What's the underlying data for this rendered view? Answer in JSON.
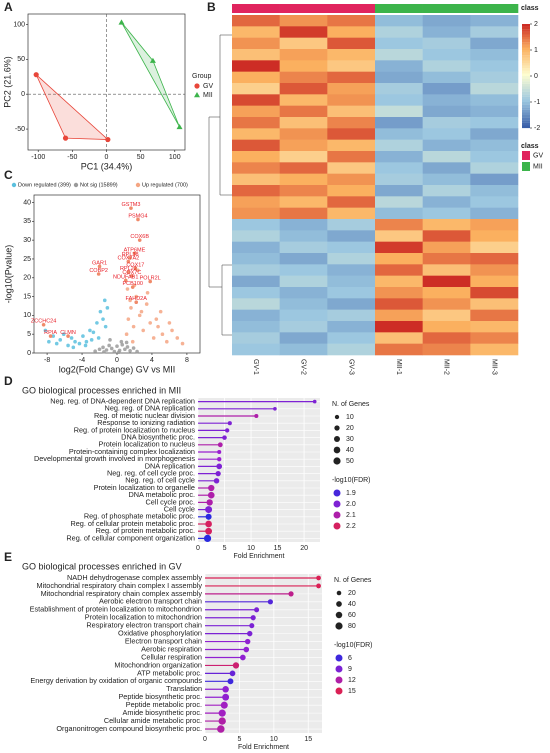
{
  "chart_data": [
    {
      "type": "scatter",
      "label": "A",
      "xlabel": "PC1 (34.4%)",
      "ylabel": "PC2 (21.6%)",
      "legend_title": "Group",
      "xlim": [
        -115,
        115
      ],
      "ylim": [
        -80,
        115
      ],
      "xticks": [
        -100,
        -50,
        0,
        50,
        100
      ],
      "yticks": [
        -50,
        0,
        50,
        100
      ],
      "hline": 0,
      "vline": 0,
      "series": [
        {
          "name": "GV",
          "color": "#e8463a",
          "marker": "circle",
          "x": [
            -103,
            -60,
            2
          ],
          "values": [
            28,
            -63,
            -65
          ]
        },
        {
          "name": "MII",
          "color": "#3cb44b",
          "marker": "triangle",
          "x": [
            22,
            68,
            107
          ],
          "values": [
            103,
            48,
            -47
          ]
        }
      ]
    },
    {
      "type": "heatmap",
      "label": "B",
      "columns": [
        "GV-1",
        "GV-2",
        "GV-3",
        "MII-1",
        "MII-2",
        "MII-3"
      ],
      "column_class": [
        "GV",
        "GV",
        "GV",
        "MII",
        "MII",
        "MII"
      ],
      "class_title": "class",
      "classes": [
        {
          "name": "GV",
          "color": "#e0245e"
        },
        {
          "name": "MII",
          "color": "#3cb44b"
        }
      ],
      "zlim": [
        -2,
        2
      ],
      "colorbar_ticks": [
        -2,
        -1,
        0,
        1,
        2
      ],
      "cmap": [
        "#3a5fa8",
        "#9cc7e0",
        "#fdfdd0",
        "#fbb05f",
        "#c81e1e"
      ],
      "rows": [
        [
          1.5,
          1.2,
          1.4,
          -1.1,
          -1.3,
          -1.2
        ],
        [
          0.9,
          1.8,
          1.0,
          -0.8,
          -1.2,
          -0.9
        ],
        [
          1.2,
          0.7,
          1.6,
          -1.0,
          -0.9,
          -1.3
        ],
        [
          0.8,
          1.1,
          0.9,
          -0.7,
          -1.0,
          -1.1
        ],
        [
          1.9,
          1.0,
          0.7,
          -1.2,
          -0.8,
          -1.0
        ],
        [
          1.0,
          1.3,
          1.5,
          -1.3,
          -1.1,
          -0.9
        ],
        [
          0.6,
          1.6,
          1.1,
          -0.9,
          -1.4,
          -0.7
        ],
        [
          1.7,
          0.9,
          1.2,
          -1.0,
          -1.2,
          -1.1
        ],
        [
          1.1,
          1.4,
          0.8,
          -0.6,
          -1.3,
          -1.2
        ],
        [
          1.4,
          0.8,
          1.3,
          -1.4,
          -0.9,
          -1.0
        ],
        [
          0.9,
          1.2,
          1.6,
          -1.1,
          -1.0,
          -1.3
        ],
        [
          1.6,
          1.1,
          0.9,
          -0.8,
          -1.2,
          -1.1
        ],
        [
          1.0,
          0.6,
          1.4,
          -1.2,
          -0.7,
          -1.0
        ],
        [
          1.3,
          1.5,
          0.7,
          -1.0,
          -1.3,
          -0.8
        ],
        [
          0.8,
          1.0,
          1.2,
          -0.9,
          -1.1,
          -1.4
        ],
        [
          1.5,
          1.3,
          1.0,
          -1.3,
          -0.8,
          -1.1
        ],
        [
          1.1,
          0.9,
          1.5,
          -0.7,
          -1.2,
          -1.0
        ],
        [
          1.2,
          1.4,
          0.9,
          -1.1,
          -1.0,
          -1.2
        ],
        [
          -1.0,
          -1.2,
          -0.9,
          1.3,
          0.9,
          1.1
        ],
        [
          -0.8,
          -1.1,
          -1.3,
          0.7,
          1.6,
          1.0
        ],
        [
          -1.2,
          -0.9,
          -1.0,
          1.8,
          1.1,
          0.6
        ],
        [
          -1.1,
          -1.3,
          -0.8,
          1.0,
          1.4,
          1.5
        ],
        [
          -0.9,
          -1.0,
          -1.2,
          1.5,
          0.8,
          1.2
        ],
        [
          -1.3,
          -0.8,
          -1.1,
          0.9,
          1.9,
          1.0
        ],
        [
          -1.0,
          -1.2,
          -1.0,
          1.2,
          1.0,
          1.7
        ],
        [
          -0.7,
          -1.1,
          -1.3,
          1.6,
          1.2,
          0.8
        ],
        [
          -1.2,
          -1.0,
          -0.9,
          1.1,
          0.7,
          1.4
        ],
        [
          -1.1,
          -0.9,
          -1.2,
          1.9,
          1.0,
          0.9
        ],
        [
          -0.9,
          -1.3,
          -1.0,
          0.8,
          1.5,
          1.3
        ],
        [
          -1.0,
          -1.1,
          -0.8,
          1.4,
          1.3,
          0.9
        ]
      ]
    },
    {
      "type": "volcano",
      "label": "C",
      "xlabel": "log2(Fold Change) GV vs MII",
      "ylabel": "-log10(Pvalue)",
      "xlim": [
        -9.5,
        9.5
      ],
      "ylim": [
        0,
        42
      ],
      "xticks": [
        -8,
        -4,
        0,
        4,
        8
      ],
      "yticks": [
        0,
        5,
        10,
        15,
        20,
        25,
        30,
        35,
        40
      ],
      "series": [
        {
          "name": "Down regulated (399)",
          "color": "#5bc0de",
          "x": [
            -8.2,
            -7.8,
            -7.3,
            -6.9,
            -6.5,
            -6.1,
            -5.6,
            -5.2,
            -4.8,
            -4.3,
            -3.9,
            -3.5,
            -3.1,
            -2.7,
            -2.3,
            -1.9,
            -1.6,
            -1.3,
            -1.1,
            -2.9,
            -3.6,
            -5.0,
            -2.1,
            -1.4
          ],
          "values": [
            6,
            3,
            4.5,
            2.5,
            3.5,
            5,
            2,
            4,
            3,
            2.5,
            4.5,
            3,
            6,
            5.5,
            8,
            11,
            9,
            7,
            12,
            3.5,
            2,
            1.5,
            4,
            14
          ]
        },
        {
          "name": "Not sig (15899)",
          "color": "#9a9a9a",
          "x": [
            -2.5,
            -2,
            -1.6,
            -1.2,
            -0.9,
            -0.6,
            -0.3,
            0,
            0.3,
            0.6,
            0.9,
            1.2,
            1.5,
            1.9,
            2.3,
            -0.8,
            0.5,
            -1.5,
            1.1,
            0.2
          ],
          "values": [
            0.5,
            1,
            1.5,
            0.8,
            2,
            1.2,
            0.4,
            1.8,
            0.7,
            2.2,
            1,
            1.6,
            0.6,
            1.3,
            0.4,
            3.5,
            3,
            0.3,
            2.8,
            0.2
          ]
        },
        {
          "name": "Up regulated (700)",
          "color": "#f4a582",
          "x": [
            1.1,
            1.3,
            1.6,
            1.9,
            2.2,
            2.6,
            3.0,
            3.4,
            3.8,
            4.2,
            4.7,
            5.2,
            5.7,
            6.3,
            6.9,
            7.5,
            1.2,
            1.5,
            2.0,
            2.8,
            3.5,
            4.5,
            1.8,
            2.4,
            5.0,
            6.0
          ],
          "values": [
            5,
            9,
            12,
            7,
            15,
            10,
            6,
            13,
            8,
            4,
            7,
            5,
            3,
            6,
            4,
            2.5,
            17,
            14,
            18,
            11,
            16,
            9,
            3,
            22,
            11,
            8
          ]
        }
      ],
      "genes": {
        "color": "#e8202a",
        "names": [
          "GSTM3",
          "PSMG4",
          "COX6B",
          "ATP6ME",
          "RPL38",
          "COX7A2",
          "COX17",
          "RPL22",
          "COX7C",
          "NDUFAB1",
          "POLR2L",
          "PCB100",
          "FAHD2A",
          "GAR1",
          "COBP2",
          "ZCCHC24",
          "RPIA",
          "CLMN"
        ],
        "x": [
          1.6,
          2.4,
          2.6,
          2.0,
          1.5,
          1.3,
          2.1,
          1.3,
          1.7,
          1.0,
          3.8,
          1.8,
          2.2,
          -2.0,
          -2.1,
          -8.4,
          -7.6,
          -5.6
        ],
        "values": [
          38.5,
          35.5,
          30,
          26.5,
          25.3,
          24.3,
          22.5,
          21.5,
          20.5,
          19.3,
          19,
          17.5,
          13.5,
          23,
          21,
          7.5,
          4.5,
          4.5
        ]
      }
    },
    {
      "type": "lollipop",
      "label": "D",
      "title": "GO biological processes enriched in MII",
      "xlabel": "Fold Enrichment",
      "xlim": [
        0,
        23
      ],
      "xticks": [
        0,
        5,
        10,
        15,
        20
      ],
      "size_title": "N. of Genes",
      "size_ticks": [
        10,
        20,
        30,
        40,
        50
      ],
      "color_title": "-log10(FDR)",
      "color_lim": [
        1.85,
        2.25
      ],
      "color_ticks": [
        1.9,
        {
          "value": 2,
          "label": "2.0"
        },
        2.1,
        2.2
      ],
      "cmap": [
        "#2a2ae0",
        "#9a1fd0",
        "#e8203a"
      ],
      "categories": [
        "Neg. reg. of DNA-dependent DNA replication",
        "Neg. reg. of DNA replication",
        "Reg. of meiotic nuclear division",
        "Response to ionizing radiation",
        "Reg. of protein localization to nucleus",
        "DNA biosynthetic proc.",
        "Protein localization to nucleus",
        "Protein-containing complex localization",
        "Developmental growth involved in morphogenesis",
        "DNA replication",
        "Neg. reg. of cell cycle proc.",
        "Neg. reg. of cell cycle",
        "Protein localization to organelle",
        "DNA metabolic proc.",
        "Cell cycle proc.",
        "Cell cycle",
        "Reg. of phosphate metabolic proc.",
        "Reg. of cellular protein metabolic proc.",
        "Reg. of protein metabolic proc.",
        "Reg. of cellular component organization"
      ],
      "values": [
        22,
        14.5,
        11,
        6,
        5.5,
        5,
        4.2,
        4,
        4,
        4,
        3.8,
        3.5,
        2.5,
        2.5,
        2.2,
        2,
        2,
        2,
        2,
        1.8
      ],
      "sizes": [
        5,
        5,
        8,
        8,
        10,
        12,
        15,
        8,
        10,
        25,
        20,
        22,
        35,
        40,
        35,
        45,
        30,
        40,
        42,
        50
      ],
      "fdr": [
        2.0,
        2.0,
        2.1,
        2.0,
        2.0,
        2.0,
        2.1,
        2.05,
        2.05,
        2.0,
        2.0,
        2.0,
        2.1,
        2.1,
        2.1,
        2.0,
        1.85,
        2.2,
        2.2,
        1.85
      ]
    },
    {
      "type": "lollipop",
      "label": "E",
      "title": "GO biological processes enriched in GV",
      "xlabel": "Fold Enrichment",
      "xlim": [
        0,
        17
      ],
      "xticks": [
        0,
        5,
        10,
        15
      ],
      "size_title": "N. of Genes",
      "size_ticks": [
        20,
        40,
        60,
        80
      ],
      "color_title": "-log10(FDR)",
      "color_lim": [
        5,
        16
      ],
      "color_ticks": [
        6,
        9,
        12,
        15
      ],
      "cmap": [
        "#2a2ae0",
        "#9a1fd0",
        "#e8203a"
      ],
      "categories": [
        "NADH dehydrogenase complex assembly",
        "Mitochondrial respiratory chain complex I assembly",
        "Mitochondrial respiratory chain complex assembly",
        "Aerobic electron transport chain",
        "Establishment of protein localization to mitochondrion",
        "Protein localization to mitochondrion",
        "Respiratory electron transport chain",
        "Oxidative phosphorylation",
        "Electron transport chain",
        "Aerobic respiration",
        "Cellular respiration",
        "Mitochondrion organization",
        "ATP metabolic proc.",
        "Energy derivation by oxidation of organic compounds",
        "Translation",
        "Peptide biosynthetic proc.",
        "Peptide metabolic proc.",
        "Amide biosynthetic proc.",
        "Cellular amide metabolic proc.",
        "Organonitrogen compound biosynthetic proc."
      ],
      "values": [
        16.5,
        16.5,
        12.5,
        9.5,
        7.5,
        7,
        6.8,
        6.5,
        6.2,
        6,
        5.5,
        4.5,
        4,
        3.7,
        3,
        3,
        2.8,
        2.5,
        2.5,
        2.3
      ],
      "sizes": [
        22,
        24,
        30,
        30,
        28,
        30,
        28,
        35,
        35,
        38,
        40,
        55,
        40,
        45,
        60,
        70,
        75,
        80,
        85,
        90
      ],
      "fdr": [
        15,
        15,
        13,
        7,
        9,
        9,
        9,
        9,
        10,
        10,
        10,
        14,
        8,
        6,
        10,
        10,
        11,
        11,
        12,
        12
      ]
    }
  ]
}
